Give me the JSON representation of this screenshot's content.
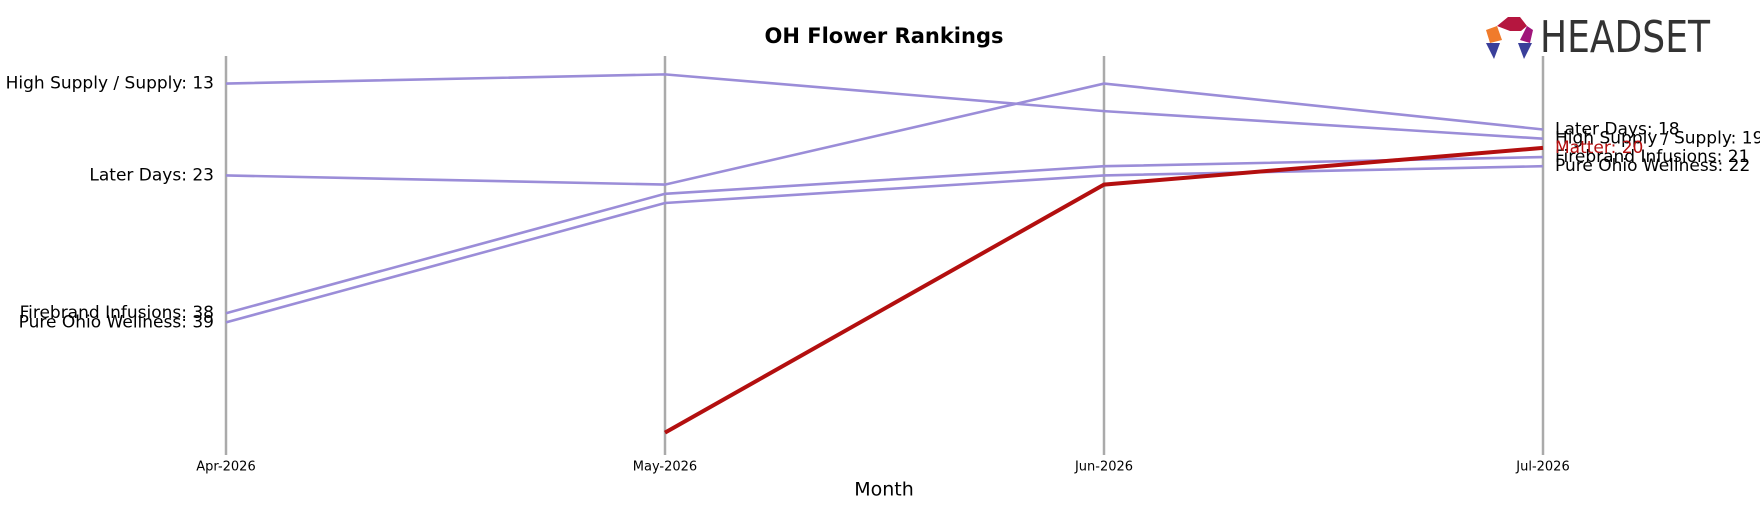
{
  "chart_data": {
    "type": "bump",
    "title": "OH Flower Rankings",
    "x_label": "Month",
    "logo_text": "HEADSET",
    "categories": [
      "Apr-2026",
      "May-2026",
      "Jun-2026",
      "Jul-2026"
    ],
    "ylim": [
      53,
      10
    ],
    "inverted": true,
    "series": [
      {
        "name": "High Supply / Supply",
        "color": "#9b8dd8",
        "values": [
          13,
          12,
          16,
          19
        ],
        "value_labels": [
          "High Supply / Supply: 13",
          null,
          null,
          "High Supply / Supply: 19"
        ]
      },
      {
        "name": "Later Days",
        "color": "#9b8dd8",
        "values": [
          23,
          24,
          13,
          18
        ],
        "value_labels": [
          "Later Days: 23",
          null,
          null,
          "Later Days: 18"
        ]
      },
      {
        "name": "Firebrand Infusions",
        "color": "#9b8dd8",
        "values": [
          38,
          25,
          22,
          21
        ],
        "value_labels": [
          "Firebrand Infusions: 38",
          null,
          null,
          "Firebrand Infusions: 21"
        ]
      },
      {
        "name": "Pure Ohio Wellness",
        "color": "#9b8dd8",
        "values": [
          39,
          26,
          23,
          22
        ],
        "value_labels": [
          "Pure Ohio Wellness: 39",
          null,
          null,
          "Pure Ohio Wellness: 22"
        ]
      },
      {
        "name": "Matter",
        "color": "#b30f0f",
        "highlight": true,
        "values": [
          null,
          51,
          24,
          20
        ],
        "value_labels": [
          null,
          null,
          null,
          "Matter: 20"
        ]
      }
    ]
  }
}
